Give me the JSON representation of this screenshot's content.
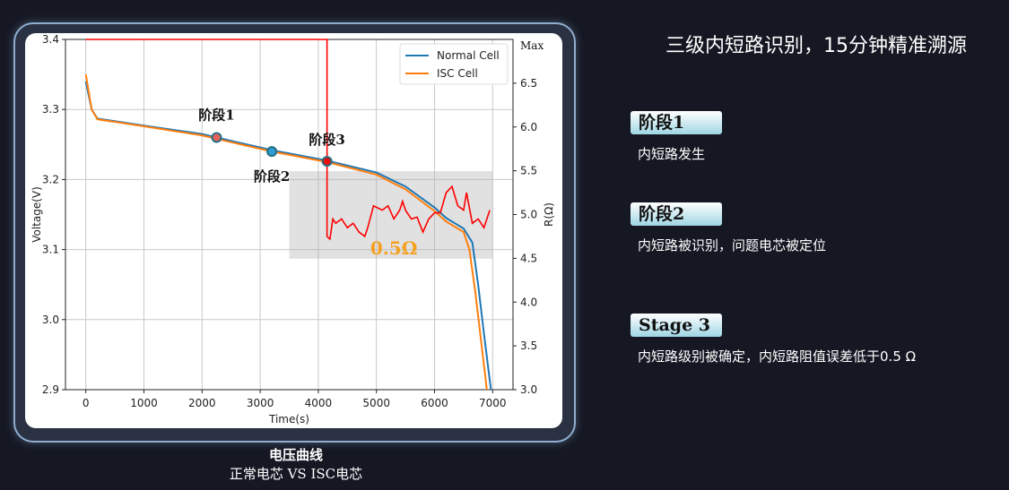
{
  "slide": {
    "title": "三级内短路识别，15分钟精准溯源",
    "caption_title": "电压曲线",
    "caption_subtitle": "正常电芯 VS ISC电芯",
    "stages": [
      {
        "badge": "阶段1",
        "description": "内短路发生"
      },
      {
        "badge": "阶段2",
        "description": "内短路被识别，问题电芯被定位"
      },
      {
        "badge": "Stage 3",
        "description": "内短路级别被确定，内短路阻值误差低于0.5 Ω"
      }
    ]
  },
  "chart_data": {
    "type": "line",
    "xlabel": "Time(s)",
    "ylabel": "Voltage(V)",
    "y2label": "R(Ω)",
    "xlim": [
      -350,
      7350
    ],
    "ylim": [
      2.9,
      3.4
    ],
    "y2lim": [
      3.0,
      7.0
    ],
    "xticks": [
      0,
      1000,
      2000,
      3000,
      4000,
      5000,
      6000,
      7000
    ],
    "yticks": [
      2.9,
      3.0,
      3.1,
      3.2,
      3.3,
      3.4
    ],
    "y2ticks": [
      3.0,
      3.5,
      4.0,
      4.5,
      5.0,
      5.5,
      6.0,
      6.5
    ],
    "y2_top_label": "Max",
    "grid": true,
    "legend": "top-right",
    "series": [
      {
        "name": "Normal Cell",
        "color": "#1f77b4",
        "axis": "left",
        "x": [
          0,
          100,
          200,
          1000,
          2000,
          2250,
          3200,
          4150,
          5000,
          5500,
          6000,
          6200,
          6500,
          6650,
          6750,
          6850,
          6970
        ],
        "y": [
          3.34,
          3.3,
          3.287,
          3.277,
          3.265,
          3.26,
          3.242,
          3.227,
          3.21,
          3.19,
          3.16,
          3.145,
          3.13,
          3.11,
          3.05,
          2.98,
          2.9
        ]
      },
      {
        "name": "ISC Cell",
        "color": "#ff7f0e",
        "axis": "left",
        "x": [
          0,
          100,
          200,
          1000,
          2000,
          2250,
          3200,
          4150,
          5000,
          5500,
          6000,
          6200,
          6500,
          6600,
          6700,
          6800,
          6900
        ],
        "y": [
          3.35,
          3.3,
          3.286,
          3.276,
          3.263,
          3.258,
          3.24,
          3.225,
          3.207,
          3.186,
          3.155,
          3.14,
          3.125,
          3.1,
          3.04,
          2.97,
          2.9
        ]
      },
      {
        "color": "#ff0000",
        "axis": "right",
        "x": [
          0,
          4150,
          4150,
          4200,
          4250,
          4300,
          4400,
          4500,
          4600,
          4700,
          4800,
          4850,
          4950,
          5100,
          5200,
          5300,
          5400,
          5450,
          5500,
          5600,
          5700,
          5800,
          5900,
          6000,
          6100,
          6200,
          6300,
          6400,
          6500,
          6550,
          6650,
          6750,
          6850,
          6950
        ],
        "y": [
          7.0,
          7.0,
          4.75,
          4.72,
          4.95,
          4.9,
          4.95,
          4.85,
          4.9,
          4.8,
          4.75,
          4.85,
          5.1,
          5.05,
          5.1,
          4.95,
          5.05,
          5.15,
          5.05,
          4.95,
          4.97,
          4.8,
          4.95,
          5.02,
          5.02,
          5.25,
          5.32,
          5.1,
          5.05,
          5.25,
          4.9,
          4.95,
          4.85,
          5.05
        ]
      }
    ],
    "markers": [
      {
        "label": "阶段1",
        "x": 2250,
        "y": 3.26,
        "color": "#e8605a"
      },
      {
        "label": "阶段2",
        "x": 3200,
        "y": 3.24,
        "color": "#2e9bd6"
      },
      {
        "label": "阶段3",
        "x": 4150,
        "y": 3.226,
        "color": "#e81010"
      }
    ],
    "highlight_region": {
      "x": [
        3500,
        7000
      ],
      "y": [
        3.087,
        3.212
      ],
      "label": "0.5Ω",
      "label_color": "#f5a020"
    }
  }
}
